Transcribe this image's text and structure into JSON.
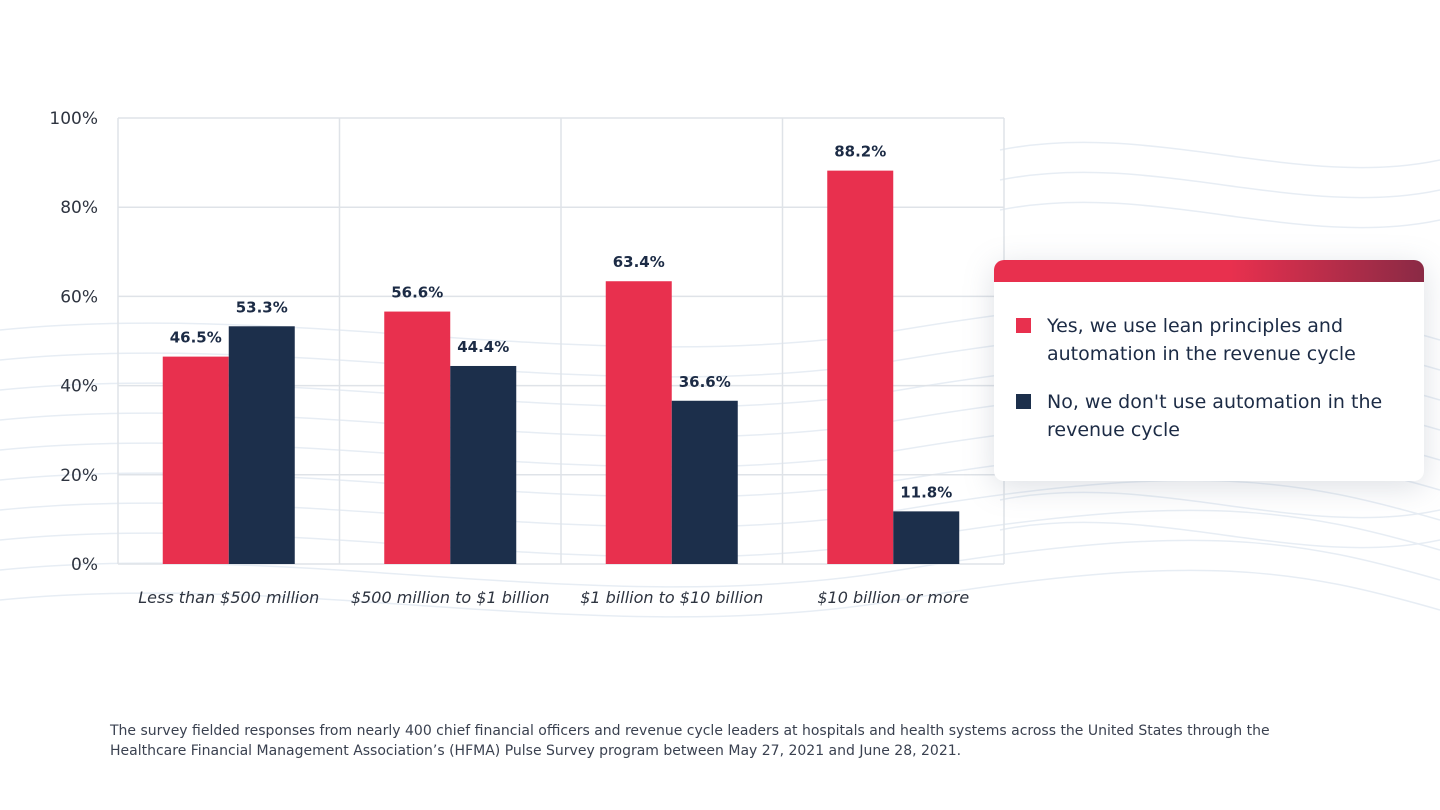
{
  "chart_data": {
    "type": "bar",
    "categories": [
      "Less than $500 million",
      "$500 million to $1 billion",
      "$1 billion to $10 billion",
      "$10 billion or more"
    ],
    "series": [
      {
        "name": "Yes, we use lean principles and automation in the revenue cycle",
        "values": [
          46.5,
          56.6,
          63.4,
          88.2
        ],
        "color": "#e8304e"
      },
      {
        "name": "No, we don't use automation in the revenue cycle",
        "values": [
          53.3,
          44.4,
          36.6,
          11.8
        ],
        "color": "#1c2f4b"
      }
    ],
    "value_labels": [
      [
        "46.5%",
        "56.6%",
        "63.4%",
        "88.2%"
      ],
      [
        "53.3%",
        "44.4%",
        "36.6%",
        "11.8%"
      ]
    ],
    "y_ticks": [
      "0%",
      "20%",
      "40%",
      "60%",
      "80%",
      "100%"
    ],
    "ylim": [
      0,
      100
    ],
    "grid": true,
    "legend_position": "right"
  },
  "legend": {
    "yes_label": "Yes, we use lean principles and automation in the revenue cycle",
    "no_label": "No, we don't use automation in the revenue cycle",
    "yes_color": "#e8304e",
    "no_color": "#1c2f4b"
  },
  "footnote": "The survey fielded responses from nearly 400 chief financial officers and revenue cycle leaders at hospitals and health systems across the United States through the Healthcare Financial Management Association’s (HFMA) Pulse Survey program between May 27, 2021 and June 28, 2021."
}
